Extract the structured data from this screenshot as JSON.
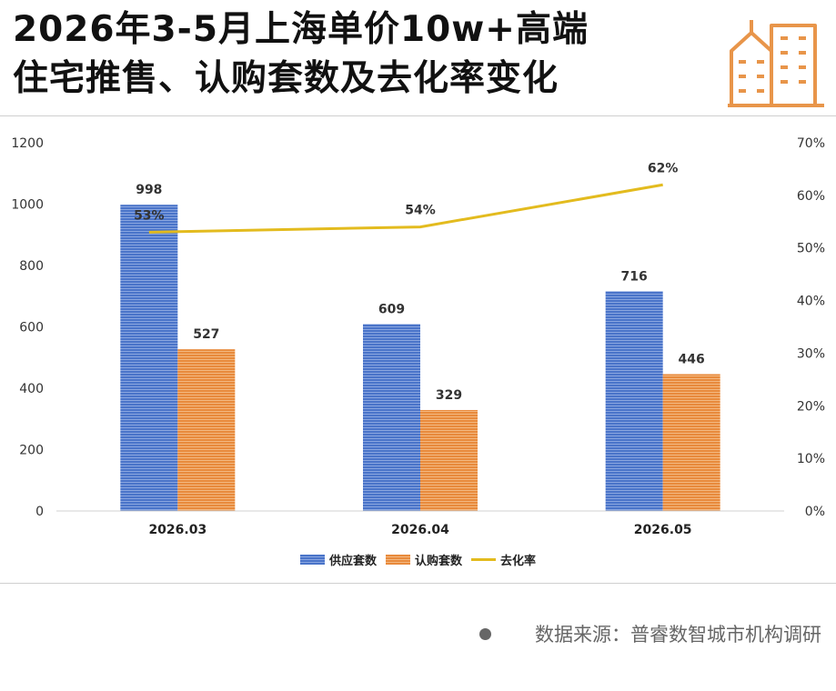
{
  "title": {
    "line1": "2026年3-5月上海单价10w+高端",
    "line2": "住宅推售、认购套数及去化率变化"
  },
  "icon": "building-icon",
  "source": "数据来源：普睿数智城市机构调研",
  "colors": {
    "supply": "#4a74c9",
    "subscribe": "#e88a3c",
    "rate": "#e3bb1e"
  },
  "chart_data": {
    "type": "bar",
    "categories": [
      "2026.03",
      "2026.04",
      "2026.05"
    ],
    "series": [
      {
        "name": "供应套数",
        "type": "bar",
        "axis": "left",
        "values": [
          998,
          609,
          716
        ],
        "labels": [
          "998",
          "609",
          "716"
        ]
      },
      {
        "name": "认购套数",
        "type": "bar",
        "axis": "left",
        "values": [
          527,
          329,
          446
        ],
        "labels": [
          "527",
          "329",
          "446"
        ]
      },
      {
        "name": "去化率",
        "type": "line",
        "axis": "right",
        "values": [
          53,
          54,
          62
        ],
        "labels": [
          "53%",
          "54%",
          "62%"
        ]
      }
    ],
    "ylim": [
      0,
      1200
    ],
    "yticks": [
      "0",
      "200",
      "400",
      "600",
      "800",
      "1000",
      "1200"
    ],
    "y2lim": [
      0,
      70
    ],
    "y2ticks": [
      "0%",
      "10%",
      "20%",
      "30%",
      "40%",
      "50%",
      "60%",
      "70%"
    ],
    "legend": "bottom",
    "grid": false
  }
}
